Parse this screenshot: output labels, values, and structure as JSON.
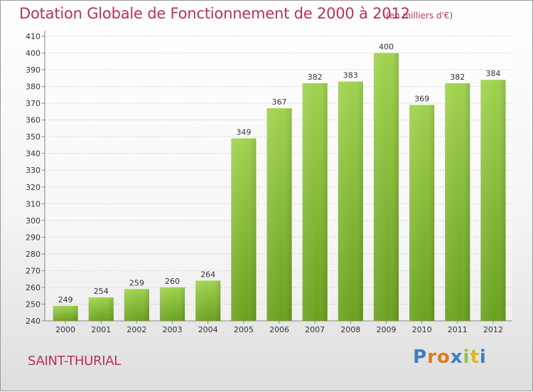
{
  "chart_data": {
    "type": "bar",
    "title": "Dotation Globale de Fonctionnement de 2000 à 2012",
    "subtitle": "(en milliers d'€)",
    "categories": [
      "2000",
      "2001",
      "2002",
      "2003",
      "2004",
      "2005",
      "2006",
      "2007",
      "2008",
      "2009",
      "2010",
      "2011",
      "2012"
    ],
    "values": [
      249,
      254,
      259,
      260,
      264,
      349,
      367,
      382,
      383,
      400,
      369,
      382,
      384
    ],
    "ylim": [
      240,
      410
    ],
    "yticks": [
      240,
      250,
      260,
      270,
      280,
      290,
      300,
      310,
      320,
      330,
      340,
      350,
      360,
      370,
      380,
      390,
      400,
      410
    ],
    "grid": true,
    "bar_color": "#8cc63f",
    "xlabel": "",
    "ylabel": ""
  },
  "footer": {
    "city": "SAINT-THURIAL",
    "logo_letters": [
      "P",
      "r",
      "o",
      "x",
      "i",
      "t",
      "i"
    ],
    "logo_colors": [
      "#3a7fc1",
      "#e07b1a",
      "#e07b1a",
      "#3a7fc1",
      "#8cc63f",
      "#e0b81a",
      "#3a7fc1"
    ]
  }
}
